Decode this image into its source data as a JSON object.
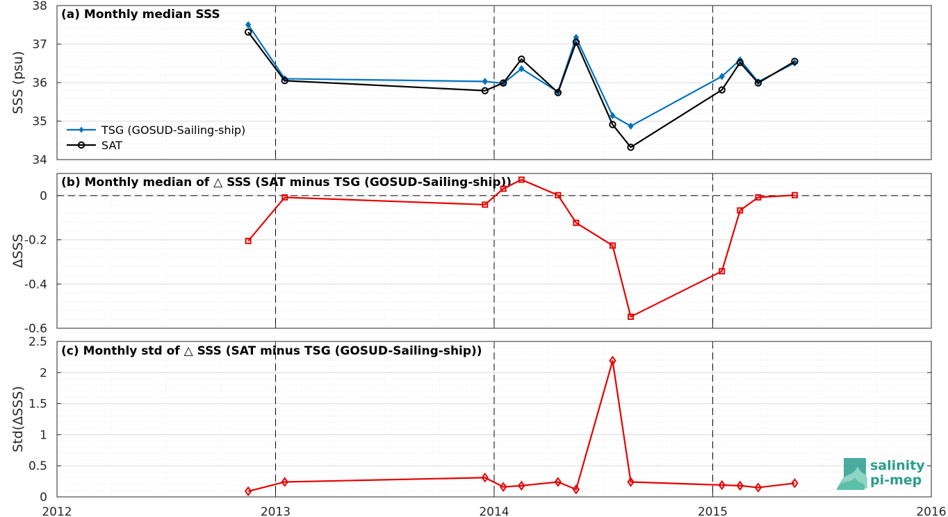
{
  "colors": {
    "tsg": "#0072BD",
    "sat": "#000000",
    "delta": "#E60000",
    "logo": "#2a9d8f"
  },
  "logo": {
    "line1": "salinity",
    "line2": "pi-mep"
  },
  "chart_data": [
    {
      "id": "a",
      "type": "line",
      "title": "(a) Monthly median SSS",
      "xlabel": "",
      "ylabel": "SSS (psu)",
      "xlim": [
        2012,
        2016
      ],
      "ylim": [
        34,
        38
      ],
      "yticks": [
        34,
        35,
        36,
        37,
        38
      ],
      "grid": true,
      "legend_position": "bottom-left",
      "series": [
        {
          "name": "TSG (GOSUD-Sailing-ship)",
          "marker": "diamond-filled",
          "color": "#0072BD",
          "x": [
            2012.875,
            2013.042,
            2013.958,
            2014.042,
            2014.125,
            2014.292,
            2014.375,
            2014.542,
            2014.625,
            2015.042,
            2015.125,
            2015.208,
            2015.375
          ],
          "y": [
            37.5,
            36.1,
            36.03,
            35.98,
            36.36,
            35.76,
            37.17,
            35.14,
            34.87,
            36.16,
            36.59,
            36.02,
            36.51
          ]
        },
        {
          "name": "SAT",
          "marker": "circle-open",
          "color": "#000000",
          "x": [
            2012.875,
            2013.042,
            2013.958,
            2014.042,
            2014.125,
            2014.292,
            2014.375,
            2014.542,
            2014.625,
            2015.042,
            2015.125,
            2015.208,
            2015.375
          ],
          "y": [
            37.31,
            36.05,
            35.79,
            35.99,
            36.61,
            35.74,
            37.05,
            34.91,
            34.32,
            35.81,
            36.52,
            35.99,
            36.55
          ]
        }
      ]
    },
    {
      "id": "b",
      "type": "line",
      "title": "(b) Monthly median of △ SSS (SAT minus TSG (GOSUD-Sailing-ship))",
      "xlabel": "",
      "ylabel": "ΔSSS",
      "xlim": [
        2012,
        2016
      ],
      "ylim": [
        -0.6,
        0.1
      ],
      "yticks": [
        -0.6,
        -0.4,
        -0.2,
        0
      ],
      "ytick_labels": [
        "-0.6",
        "-0.4",
        "-0.2",
        "0"
      ],
      "grid": true,
      "reference_line": 0,
      "series": [
        {
          "name": "",
          "marker": "square-open",
          "color": "#E60000",
          "x": [
            2012.875,
            2013.042,
            2013.958,
            2014.042,
            2014.125,
            2014.292,
            2014.375,
            2014.542,
            2014.625,
            2015.042,
            2015.125,
            2015.208,
            2015.375
          ],
          "y": [
            -0.205,
            -0.008,
            -0.041,
            0.031,
            0.072,
            0.002,
            -0.123,
            -0.226,
            -0.548,
            -0.342,
            -0.067,
            -0.008,
            0.002
          ]
        }
      ]
    },
    {
      "id": "c",
      "type": "line",
      "title": "(c) Monthly std of △ SSS (SAT minus TSG (GOSUD-Sailing-ship))",
      "xlabel": "",
      "ylabel": "Std(ΔSSS)",
      "xlim": [
        2012,
        2016
      ],
      "ylim": [
        0,
        2.5
      ],
      "yticks": [
        0,
        0.5,
        1,
        1.5,
        2,
        2.5
      ],
      "ytick_labels": [
        "0",
        "0.5",
        "1",
        "1.5",
        "2",
        "2.5"
      ],
      "xticks": [
        2012,
        2013,
        2014,
        2015,
        2016
      ],
      "xtick_labels": [
        "2012",
        "2013",
        "2014",
        "2015",
        "2016"
      ],
      "grid": true,
      "series": [
        {
          "name": "",
          "marker": "diamond-open",
          "color": "#E60000",
          "x": [
            2012.875,
            2013.042,
            2013.958,
            2014.042,
            2014.125,
            2014.292,
            2014.375,
            2014.542,
            2014.625,
            2015.042,
            2015.125,
            2015.208,
            2015.375
          ],
          "y": [
            0.09,
            0.24,
            0.31,
            0.16,
            0.18,
            0.24,
            0.12,
            2.19,
            0.24,
            0.19,
            0.18,
            0.15,
            0.22
          ]
        }
      ]
    }
  ]
}
